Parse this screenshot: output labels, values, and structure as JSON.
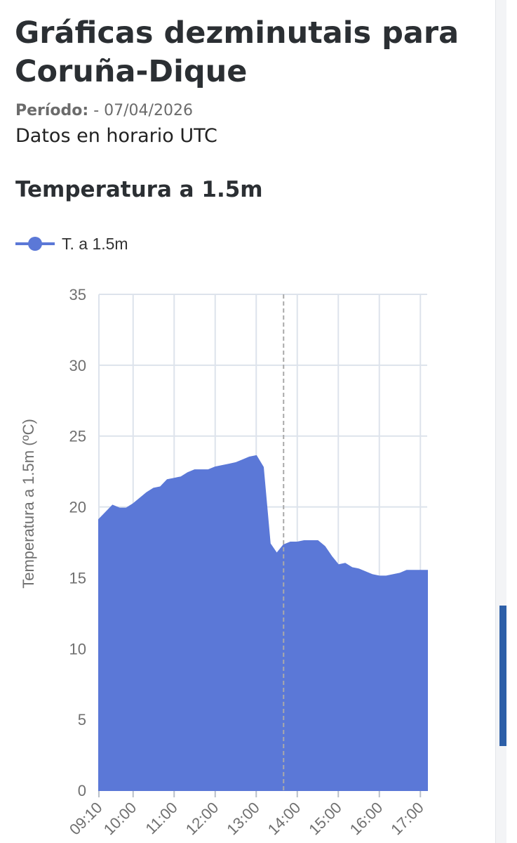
{
  "page": {
    "title": "Gráficas dezminutais para Coruña-Dique",
    "period_label": "Período:",
    "period_value": " - 07/04/2026",
    "utc_note": "Datos en horario UTC"
  },
  "section": {
    "title": "Temperatura a 1.5m"
  },
  "colors": {
    "series": "#5b78d7",
    "grid": "#dde3ec",
    "axis_text": "#707070"
  },
  "chart_data": {
    "type": "area",
    "title": "",
    "xlabel": "",
    "ylabel": "Temperatura  a 1.5m (ºC)",
    "ylim": [
      0,
      35
    ],
    "yticks": [
      0,
      5,
      10,
      15,
      20,
      25,
      30,
      35
    ],
    "xlim": [
      "09:10",
      "17:10"
    ],
    "xticks": [
      "09:10",
      "10:00",
      "11:00",
      "12:00",
      "13:00",
      "14:00",
      "15:00",
      "16:00",
      "17:00"
    ],
    "grid": true,
    "legend_position": "top-left",
    "marker_line": "13:40",
    "series": [
      {
        "name": "T.  a 1.5m",
        "x": [
          "09:10",
          "09:20",
          "09:30",
          "09:40",
          "09:50",
          "10:00",
          "10:10",
          "10:20",
          "10:30",
          "10:40",
          "10:50",
          "11:00",
          "11:10",
          "11:20",
          "11:30",
          "11:40",
          "11:50",
          "12:00",
          "12:10",
          "12:20",
          "12:30",
          "12:40",
          "12:50",
          "13:00",
          "13:10",
          "13:20",
          "13:30",
          "13:40",
          "13:50",
          "14:00",
          "14:10",
          "14:20",
          "14:30",
          "14:40",
          "14:50",
          "15:00",
          "15:10",
          "15:20",
          "15:30",
          "15:40",
          "15:50",
          "16:00",
          "16:10",
          "16:20",
          "16:30",
          "16:40",
          "16:50",
          "17:00",
          "17:10"
        ],
        "values": [
          19.1,
          19.6,
          20.1,
          19.9,
          19.9,
          20.2,
          20.6,
          21.0,
          21.3,
          21.4,
          21.9,
          22.0,
          22.1,
          22.4,
          22.6,
          22.6,
          22.6,
          22.8,
          22.9,
          23.0,
          23.1,
          23.3,
          23.5,
          23.6,
          22.8,
          17.4,
          16.7,
          17.3,
          17.5,
          17.5,
          17.6,
          17.6,
          17.6,
          17.2,
          16.5,
          15.9,
          16.0,
          15.7,
          15.6,
          15.4,
          15.2,
          15.1,
          15.1,
          15.2,
          15.3,
          15.5,
          15.5,
          15.5,
          15.5
        ]
      }
    ]
  }
}
